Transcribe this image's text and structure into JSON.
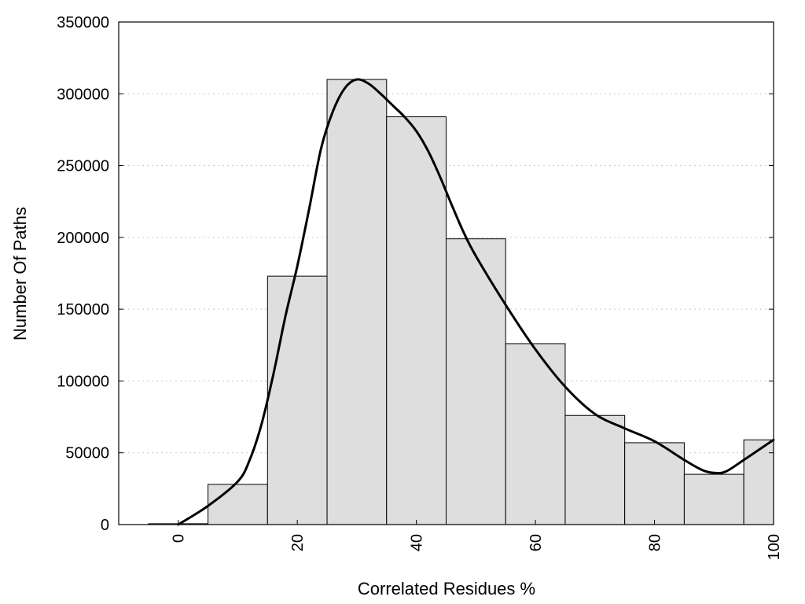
{
  "chart_data": {
    "type": "bar",
    "title": "",
    "xlabel": "Correlated Residues %",
    "ylabel": "Number Of Paths",
    "xlim": [
      -10,
      100
    ],
    "ylim": [
      0,
      350000
    ],
    "bin_width": 10,
    "bars": [
      {
        "x": 0,
        "value": 600
      },
      {
        "x": 10,
        "value": 28000
      },
      {
        "x": 20,
        "value": 173000
      },
      {
        "x": 30,
        "value": 310000
      },
      {
        "x": 40,
        "value": 284000
      },
      {
        "x": 50,
        "value": 199000
      },
      {
        "x": 60,
        "value": 126000
      },
      {
        "x": 70,
        "value": 76000
      },
      {
        "x": 80,
        "value": 57000
      },
      {
        "x": 90,
        "value": 35000
      },
      {
        "x": 100,
        "value": 59000
      }
    ],
    "curve": {
      "x": [
        0,
        5,
        10,
        12,
        14,
        16,
        18,
        20,
        22,
        24,
        26,
        28,
        30,
        32,
        34,
        36,
        38,
        40,
        42,
        44,
        46,
        48,
        50,
        55,
        60,
        65,
        70,
        75,
        80,
        85,
        88,
        90,
        92,
        95,
        100
      ],
      "y": [
        0,
        13000,
        30000,
        45000,
        70000,
        105000,
        145000,
        180000,
        220000,
        262000,
        288000,
        304000,
        310000,
        307000,
        300000,
        292000,
        284000,
        274000,
        260000,
        242000,
        222000,
        203000,
        187000,
        153000,
        122000,
        96000,
        77000,
        67000,
        58000,
        45000,
        38000,
        36000,
        37000,
        45000,
        59000
      ]
    },
    "yticks": [
      0,
      50000,
      100000,
      150000,
      200000,
      250000,
      300000,
      350000
    ],
    "xticks": [
      0,
      20,
      40,
      60,
      80,
      100
    ],
    "grid": "y-dotted",
    "legend": "none"
  }
}
